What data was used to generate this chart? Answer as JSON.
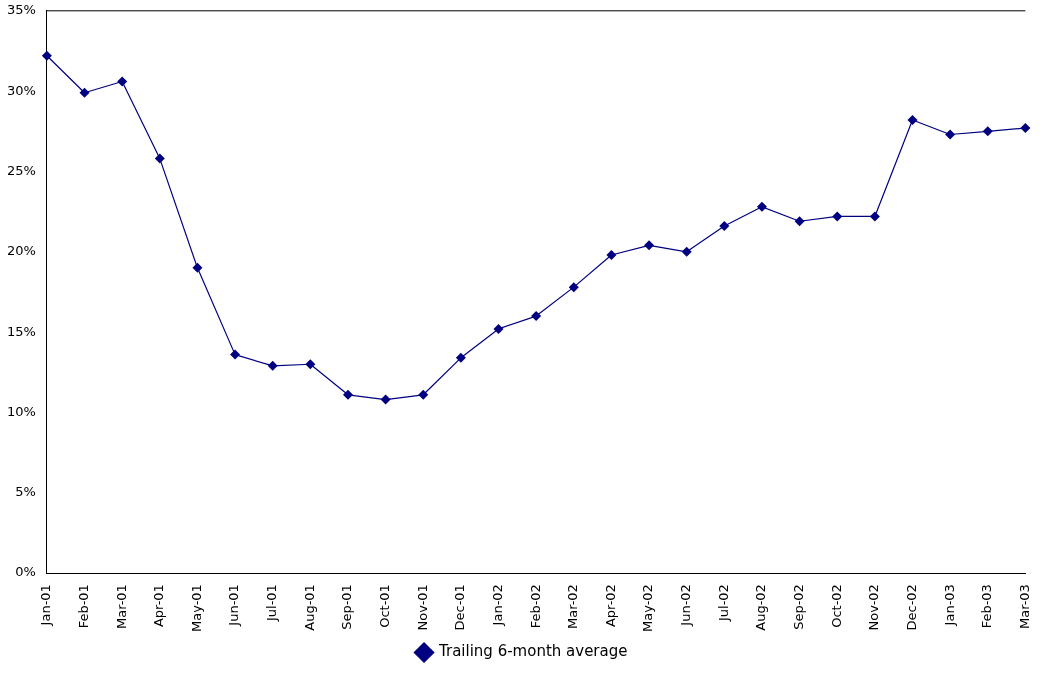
{
  "chart_data": {
    "type": "line",
    "categories": [
      "Jan-01",
      "Feb-01",
      "Mar-01",
      "Apr-01",
      "May-01",
      "Jun-01",
      "Jul-01",
      "Aug-01",
      "Sep-01",
      "Oct-01",
      "Nov-01",
      "Dec-01",
      "Jan-02",
      "Feb-02",
      "Mar-02",
      "Apr-02",
      "May-02",
      "Jun-02",
      "Jul-02",
      "Aug-02",
      "Sep-02",
      "Oct-02",
      "Nov-02",
      "Dec-02",
      "Jan-03",
      "Feb-03",
      "Mar-03"
    ],
    "series": [
      {
        "name": "Trailing 6-month average",
        "color": "#000080",
        "values": [
          32.2,
          29.9,
          30.6,
          25.8,
          19.0,
          13.6,
          12.9,
          13.0,
          11.1,
          10.8,
          11.1,
          13.4,
          15.2,
          16.0,
          17.8,
          19.8,
          20.4,
          20.0,
          21.6,
          22.8,
          21.9,
          22.2,
          22.2,
          28.2,
          27.3,
          27.5,
          27.7
        ]
      }
    ],
    "ylim": [
      0,
      35
    ],
    "yticks": [
      {
        "value": 0,
        "label": "0%"
      },
      {
        "value": 5,
        "label": "5%"
      },
      {
        "value": 10,
        "label": "10%"
      },
      {
        "value": 15,
        "label": "15%"
      },
      {
        "value": 20,
        "label": "20%"
      },
      {
        "value": 25,
        "label": "25%"
      },
      {
        "value": 30,
        "label": "30%"
      },
      {
        "value": 35,
        "label": "35%"
      }
    ],
    "grid": false,
    "legend": "bottom",
    "marker": "diamond",
    "line_style": "solid"
  }
}
